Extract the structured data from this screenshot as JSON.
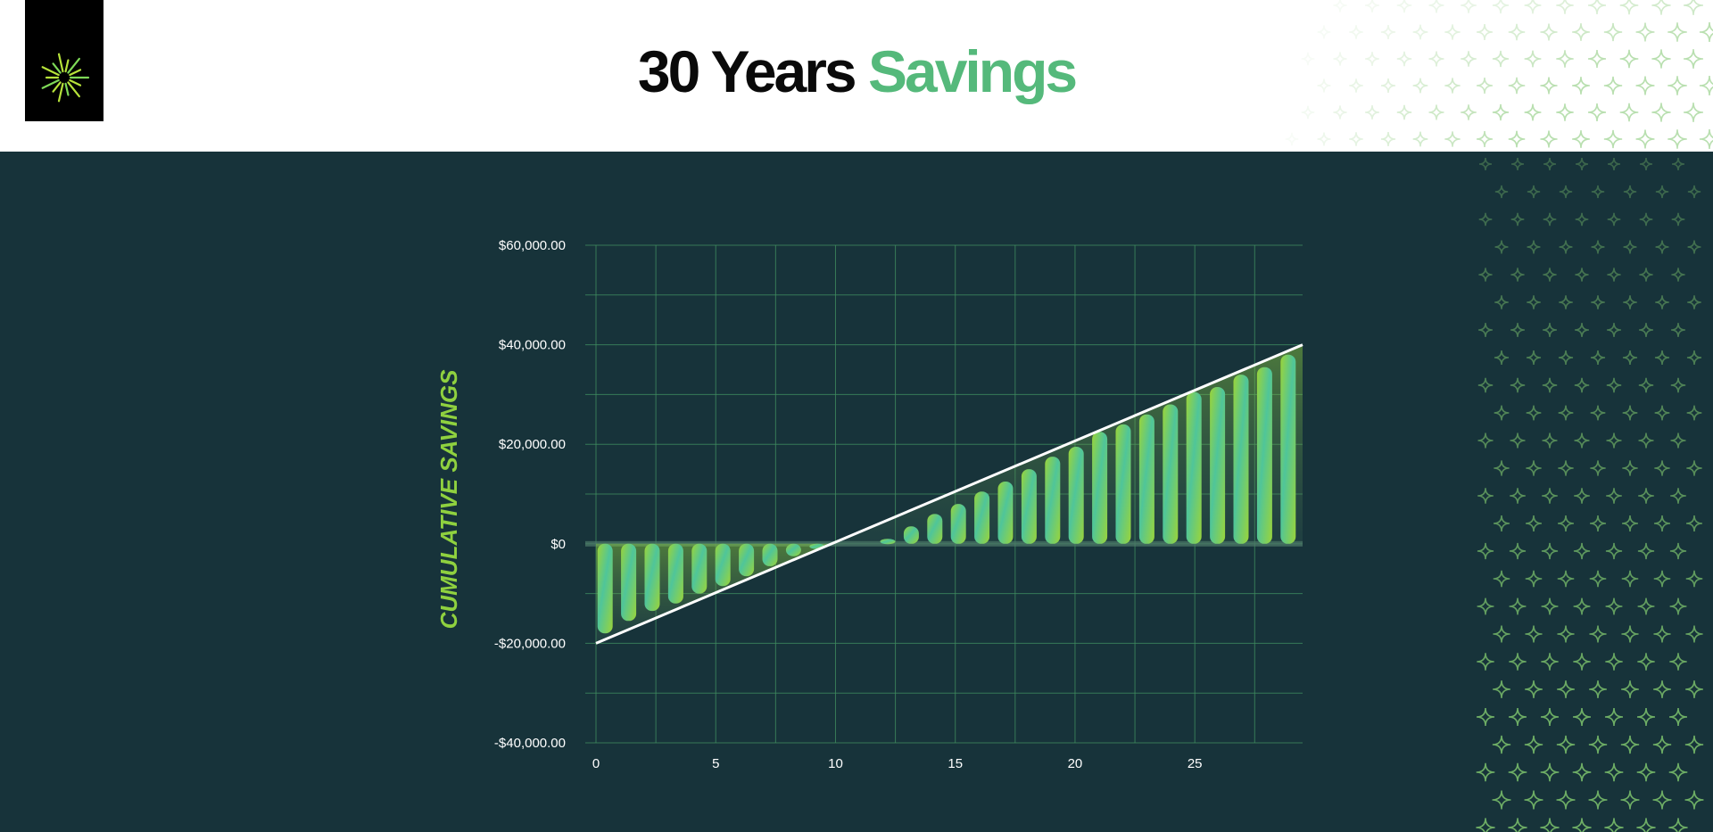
{
  "header": {
    "title_part1": "30 Years",
    "title_part2": "Savings",
    "logo_icon": "starburst-logo-icon"
  },
  "colors": {
    "header_bg": "#ffffff",
    "main_bg": "#17333a",
    "title_dark": "#0a0a0a",
    "title_accent": "#55b97b",
    "bar_green": "#97d43a",
    "bar_teal": "#4fc59a",
    "gridline": "#3f8c5f",
    "trend_line": "#ffffff",
    "axis_label": "#8fd13f",
    "pattern_star": "#7ec46d"
  },
  "chart_data": {
    "type": "bar",
    "ylabel": "CUMULATIVE SAVINGS",
    "xlabel": "",
    "x": [
      1,
      2,
      3,
      4,
      5,
      6,
      7,
      8,
      9,
      10,
      11,
      12,
      13,
      14,
      15,
      16,
      17,
      18,
      19,
      20,
      21,
      22,
      23,
      24,
      25,
      26,
      27,
      28,
      29,
      30
    ],
    "values": [
      -18000,
      -15500,
      -13500,
      -12000,
      -10000,
      -8500,
      -6500,
      -4500,
      -2500,
      -700,
      0,
      0,
      1000,
      3500,
      6000,
      8000,
      10500,
      12500,
      15000,
      17500,
      19500,
      22500,
      24000,
      26000,
      28000,
      30500,
      31500,
      34000,
      35500,
      38000
    ],
    "trend_line": {
      "x": [
        0,
        29.5
      ],
      "y": [
        -20000,
        40000
      ]
    },
    "ylim": [
      -40000,
      60000
    ],
    "xlim": [
      0,
      29.5
    ],
    "yticks": [
      -40000,
      -20000,
      0,
      20000,
      40000,
      60000
    ],
    "ytick_labels": [
      "-$40,000.00",
      "-$20,000.00",
      "$0",
      "$20,000.00",
      "$40,000.00",
      "$60,000.00"
    ],
    "xticks": [
      0,
      5,
      10,
      15,
      20,
      25
    ],
    "xtick_labels": [
      "0",
      "5",
      "10",
      "15",
      "20",
      "25"
    ],
    "grid": true,
    "legend": "none"
  }
}
